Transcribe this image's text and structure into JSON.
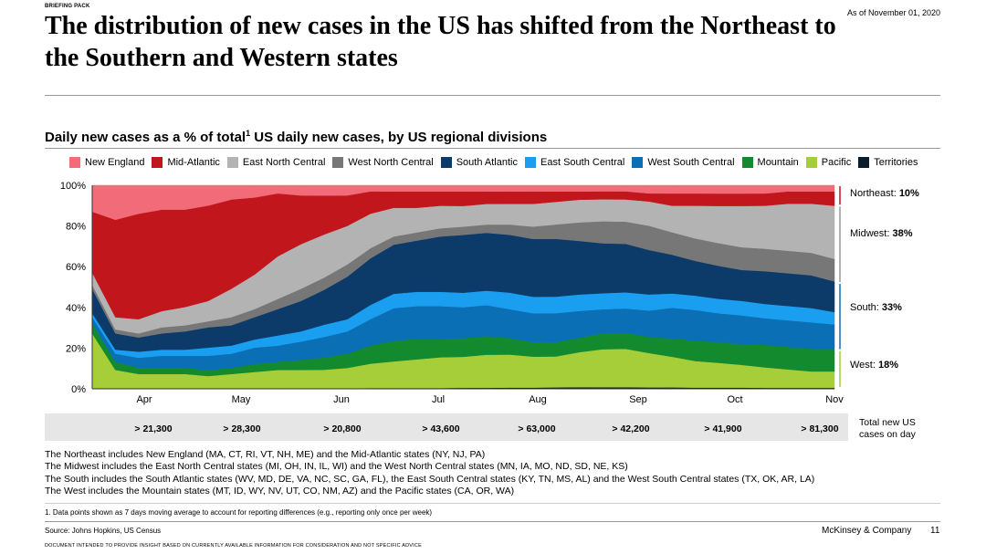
{
  "header": {
    "briefing": "BRIEFING PACK",
    "as_of": "As of November 01, 2020",
    "title": "The distribution of new cases in the US has shifted from the Northeast to the Southern and Western states"
  },
  "subtitle": {
    "text": "Daily new cases as a % of total",
    "sup": "1",
    "text_after": " US daily new cases, by US regional divisions"
  },
  "chart_data": {
    "type": "area",
    "stacked": true,
    "normalized_percent": true,
    "x": [
      "Mar 28",
      "Apr 1",
      "Apr 8",
      "Apr 15",
      "Apr 22",
      "Apr 29",
      "May 6",
      "May 13",
      "May 20",
      "May 27",
      "Jun 3",
      "Jun 10",
      "Jun 17",
      "Jun 24",
      "Jul 1",
      "Jul 8",
      "Jul 15",
      "Jul 22",
      "Jul 29",
      "Aug 5",
      "Aug 12",
      "Aug 19",
      "Aug 26",
      "Sep 2",
      "Sep 9",
      "Sep 16",
      "Sep 23",
      "Sep 30",
      "Oct 7",
      "Oct 14",
      "Oct 21",
      "Oct 28",
      "Nov 1"
    ],
    "x_ticks": [
      "Apr",
      "May",
      "Jun",
      "Jul",
      "Aug",
      "Sep",
      "Oct",
      "Nov"
    ],
    "y_ticks": [
      "0%",
      "20%",
      "40%",
      "60%",
      "80%",
      "100%"
    ],
    "ylim": [
      0,
      100
    ],
    "series": [
      {
        "name": "Territories",
        "color": "#0b1c2c",
        "values": [
          0.3,
          0.3,
          0.3,
          0.3,
          0.3,
          0.3,
          0.3,
          0.3,
          0.3,
          0.3,
          0.3,
          0.3,
          0.4,
          0.4,
          0.4,
          0.4,
          0.5,
          0.5,
          0.6,
          0.6,
          0.7,
          0.8,
          0.8,
          0.8,
          0.7,
          0.7,
          0.6,
          0.6,
          0.6,
          0.5,
          0.5,
          0.5,
          0.5
        ]
      },
      {
        "name": "Pacific",
        "color": "#a6ce39",
        "values": [
          27,
          9,
          7,
          7,
          7,
          6,
          7,
          8,
          9,
          9,
          9,
          10,
          12,
          13,
          14,
          15,
          15,
          16,
          16,
          15,
          15,
          17,
          19,
          19,
          17,
          15,
          13,
          12,
          11,
          10,
          9,
          8,
          8
        ]
      },
      {
        "name": "Mountain",
        "color": "#138a2e",
        "values": [
          5,
          4,
          3,
          3,
          3,
          3,
          3,
          4,
          4,
          5,
          6,
          7,
          9,
          10,
          10,
          9,
          9,
          9,
          8,
          7,
          7,
          7,
          8,
          8,
          8,
          9,
          10,
          10,
          10,
          11,
          11,
          11,
          11
        ]
      },
      {
        "name": "West South Central",
        "color": "#0a6fb5",
        "values": [
          3,
          4,
          5,
          6,
          6,
          7,
          7,
          8,
          8,
          9,
          10,
          11,
          13,
          16,
          16,
          16,
          15,
          15,
          14,
          14,
          14,
          13,
          12,
          12,
          13,
          15,
          15,
          14,
          14,
          13,
          13,
          13,
          12
        ]
      },
      {
        "name": "East South Central",
        "color": "#1a9ff0",
        "values": [
          2,
          2,
          3,
          3,
          3,
          4,
          4,
          4,
          5,
          5,
          6,
          6,
          7,
          7,
          7,
          7,
          7,
          7,
          8,
          8,
          8,
          8,
          8,
          8,
          8,
          7,
          7,
          7,
          7,
          7,
          7,
          7,
          6
        ]
      },
      {
        "name": "South Atlantic",
        "color": "#0c3b6a",
        "values": [
          12,
          8,
          7,
          8,
          9,
          10,
          10,
          11,
          13,
          15,
          17,
          21,
          23,
          24,
          25,
          27,
          28,
          28,
          28,
          28,
          28,
          26,
          25,
          24,
          22,
          19,
          17,
          16,
          15,
          16,
          16,
          16,
          15
        ]
      },
      {
        "name": "West North Central",
        "color": "#777777",
        "values": [
          2,
          2,
          2,
          3,
          3,
          3,
          4,
          4,
          5,
          6,
          6,
          6,
          5,
          4,
          4,
          4,
          4,
          4,
          5,
          6,
          7,
          9,
          11,
          11,
          12,
          11,
          11,
          11,
          11,
          11,
          11,
          11,
          11
        ]
      },
      {
        "name": "East North Central",
        "color": "#b3b3b3",
        "values": [
          6,
          6,
          7,
          8,
          9,
          10,
          14,
          17,
          21,
          22,
          21,
          19,
          17,
          14,
          12,
          11,
          10,
          10,
          10,
          11,
          11,
          11,
          11,
          11,
          12,
          13,
          16,
          18,
          20,
          21,
          23,
          24,
          26
        ]
      },
      {
        "name": "Mid-Atlantic",
        "color": "#c0161c",
        "values": [
          30,
          48,
          52,
          50,
          48,
          47,
          44,
          38,
          31,
          24,
          19,
          15,
          11,
          8,
          8,
          7,
          7,
          6,
          6,
          6,
          5,
          4,
          4,
          4,
          4,
          6,
          6,
          6,
          6,
          6,
          6,
          6,
          7
        ]
      },
      {
        "name": "New England",
        "color": "#f26b78",
        "values": [
          13,
          17,
          14,
          12,
          12,
          10,
          7,
          6,
          4,
          5,
          5,
          5,
          3,
          3,
          3,
          3,
          3,
          3,
          3,
          3,
          3,
          3,
          3,
          3,
          4,
          4,
          4,
          4,
          4,
          4,
          3,
          3,
          3
        ]
      }
    ],
    "region_labels": [
      {
        "label": "Northeast: ",
        "value": "10%"
      },
      {
        "label": "Midwest: ",
        "value": "38%"
      },
      {
        "label": "South: ",
        "value": "33%"
      },
      {
        "label": "West: ",
        "value": "18%"
      }
    ]
  },
  "totals": {
    "values": [
      "> 21,300",
      "> 28,300",
      "> 20,800",
      "> 43,600",
      "> 63,000",
      "> 42,200",
      "> 41,900",
      "> 81,300"
    ],
    "label_line1": "Total new US",
    "label_line2": "cases on day"
  },
  "notes": [
    "The Northeast includes New England (MA, CT, RI, VT, NH, ME) and the Mid-Atlantic states (NY, NJ, PA)",
    "The Midwest includes the East North Central states (MI, OH, IN, IL, WI) and the West North Central states (MN, IA, MO, ND, SD, NE, KS)",
    "The South includes the South Atlantic states (WV, MD, DE, VA, NC, SC, GA, FL), the East South Central states (KY, TN, MS, AL) and the West South Central states (TX, OK, AR, LA)",
    "The West includes the Mountain states (MT, ID, WY, NV, UT, CO, NM, AZ) and the Pacific states (CA, OR, WA)"
  ],
  "footnote": "1. Data points shown as 7 days moving average to account for reporting differences (e.g., reporting only once per week)",
  "source": "Source: Johns Hopkins, US Census",
  "company": "McKinsey & Company",
  "page_number": "11",
  "disclaimer": "DOCUMENT INTENDED TO PROVIDE INSIGHT BASED ON CURRENTLY AVAILABLE INFORMATION FOR CONSIDERATION AND NOT SPECIFIC ADVICE",
  "legend_order": [
    "New England",
    "Mid-Atlantic",
    "East North Central",
    "West North Central",
    "South Atlantic",
    "East South Central",
    "West South Central",
    "Mountain",
    "Pacific",
    "Territories"
  ]
}
